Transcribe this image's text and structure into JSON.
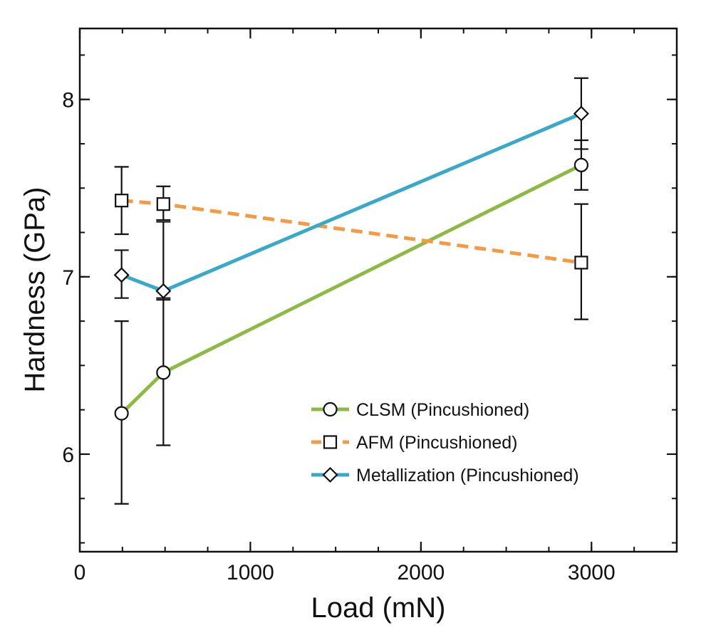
{
  "chart_data": {
    "type": "line",
    "xlabel": "Load (mN)",
    "ylabel": "Hardness (GPa)",
    "xlim": [
      0,
      3500
    ],
    "ylim": [
      5.45,
      8.4
    ],
    "x_major_ticks": [
      0,
      1000,
      2000,
      3000
    ],
    "x_tick_labels": [
      "0",
      "1000",
      "2000",
      "3000"
    ],
    "x_minor_step": 250,
    "y_major_ticks": [
      6,
      7,
      8
    ],
    "y_tick_labels": [
      "6",
      "7",
      "8"
    ],
    "y_minor_step": 0.25,
    "grid": false,
    "legend_position": "bottom-right",
    "series": [
      {
        "name": "CLSM (Pincushioned)",
        "color": "#8cba45",
        "line_style": "solid",
        "marker": "circle",
        "x": [
          245,
          490,
          2940
        ],
        "y": [
          6.23,
          6.46,
          7.63
        ],
        "err_low": [
          5.72,
          6.05,
          7.49
        ],
        "err_high": [
          6.75,
          6.88,
          7.77
        ]
      },
      {
        "name": "AFM (Pincushioned)",
        "color": "#f39a43",
        "line_style": "dashed",
        "marker": "square",
        "x": [
          245,
          490,
          2940
        ],
        "y": [
          7.43,
          7.41,
          7.08
        ],
        "err_low": [
          7.24,
          7.32,
          6.76
        ],
        "err_high": [
          7.62,
          7.51,
          7.41
        ]
      },
      {
        "name": "Metallization (Pincushioned)",
        "color": "#3aa8c8",
        "line_style": "solid",
        "marker": "diamond",
        "x": [
          245,
          490,
          2940
        ],
        "y": [
          7.01,
          6.92,
          7.92
        ],
        "err_low": [
          6.88,
          6.87,
          7.72
        ],
        "err_high": [
          7.15,
          7.31,
          8.12
        ]
      }
    ]
  }
}
